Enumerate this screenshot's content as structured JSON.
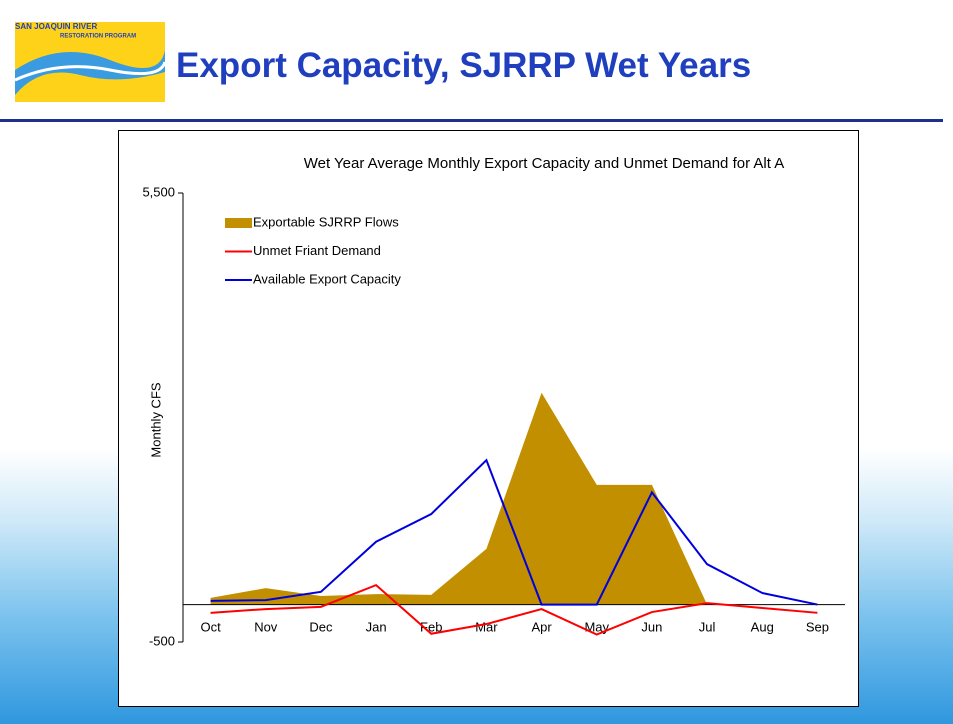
{
  "logo": {
    "line1": "SAN JOAQUIN RIVER",
    "line2": "RESTORATION PROGRAM"
  },
  "slide_title": "Export Capacity, SJRRP Wet Years",
  "chart_data": {
    "type": "area-line",
    "title": "Wet Year Average Monthly Export Capacity and Unmet Demand for Alt A",
    "y_label": "Monthly CFS",
    "categories": [
      "Oct",
      "Nov",
      "Dec",
      "Jan",
      "Feb",
      "Mar",
      "Apr",
      "May",
      "Jun",
      "Jul",
      "Aug",
      "Sep"
    ],
    "series": [
      {
        "name": "Exportable SJRRP Flows",
        "kind": "area",
        "color": "#c18f00",
        "values": [
          90,
          220,
          115,
          140,
          130,
          745,
          2830,
          1600,
          1600,
          0,
          0,
          0
        ]
      },
      {
        "name": "Unmet Friant Demand",
        "kind": "line",
        "color": "#ff0000",
        "values": [
          -110,
          -60,
          -30,
          260,
          -390,
          -260,
          -60,
          -400,
          -100,
          20,
          -45,
          -110
        ]
      },
      {
        "name": "Available Export Capacity",
        "kind": "line",
        "color": "#0000dd",
        "values": [
          50,
          60,
          170,
          840,
          1210,
          1930,
          0,
          0,
          1500,
          540,
          155,
          0
        ]
      }
    ],
    "ylim": [
      -500,
      5500
    ],
    "yticks": [
      {
        "value": 5500,
        "label": "5,500"
      },
      -500
    ],
    "grid": false,
    "legend": "upper left"
  }
}
